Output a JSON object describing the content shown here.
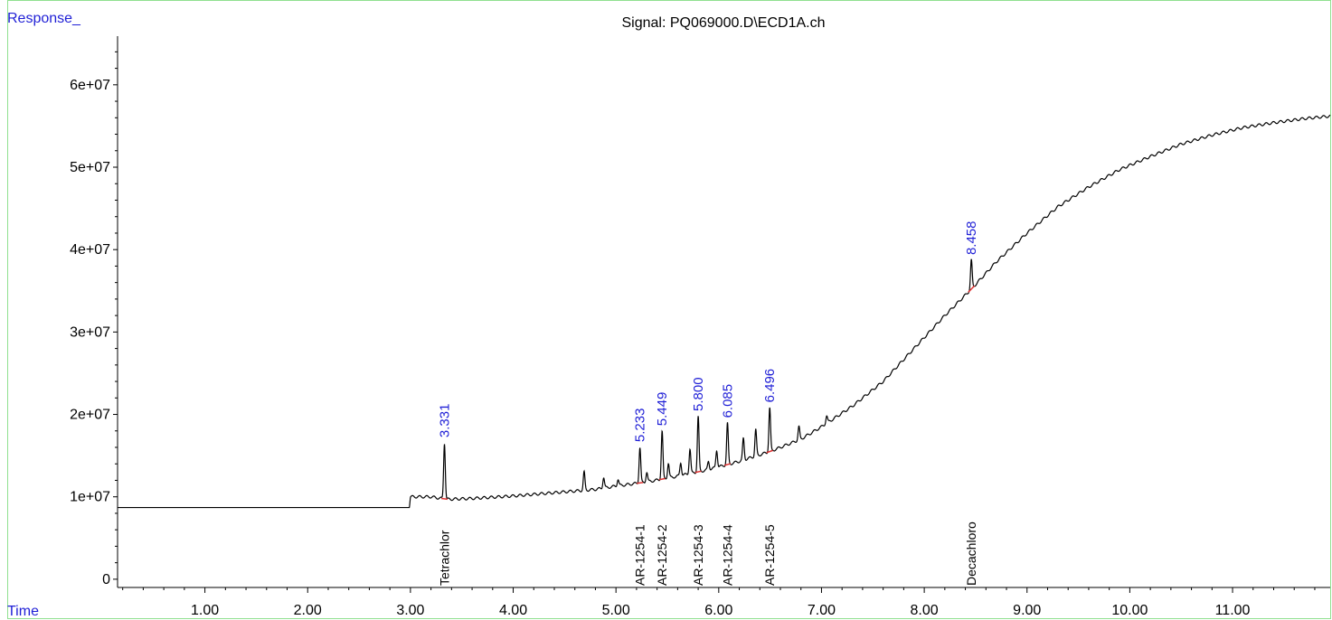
{
  "chart_data": {
    "type": "line",
    "title": "Signal: PQ069000.D\\ECD1A.ch",
    "ylabel": "Response_",
    "xlabel": "Time",
    "xlim": [
      0.15,
      11.95
    ],
    "ylim": [
      -1000000,
      67000000
    ],
    "x_ticks": [
      "1.00",
      "2.00",
      "3.00",
      "4.00",
      "5.00",
      "6.00",
      "7.00",
      "8.00",
      "9.00",
      "10.00",
      "11.00"
    ],
    "x_tick_values": [
      1,
      2,
      3,
      4,
      5,
      6,
      7,
      8,
      9,
      10,
      11
    ],
    "y_ticks": [
      "0",
      "1e+07",
      "2e+07",
      "3e+07",
      "4e+07",
      "5e+07",
      "6e+07"
    ],
    "y_tick_values": [
      0,
      10000000,
      20000000,
      30000000,
      40000000,
      50000000,
      60000000
    ],
    "baseline": [
      [
        0.15,
        8700000
      ],
      [
        2.99,
        8700000
      ],
      [
        3.0,
        10000000
      ],
      [
        3.2,
        10000000
      ],
      [
        3.35,
        9700000
      ],
      [
        3.6,
        9800000
      ],
      [
        4.0,
        10100000
      ],
      [
        4.4,
        10500000
      ],
      [
        4.8,
        10900000
      ],
      [
        5.0,
        11300000
      ],
      [
        5.3,
        11800000
      ],
      [
        5.6,
        12500000
      ],
      [
        5.9,
        13300000
      ],
      [
        6.2,
        14300000
      ],
      [
        6.5,
        15500000
      ],
      [
        6.8,
        17000000
      ],
      [
        7.0,
        18500000
      ],
      [
        7.3,
        21000000
      ],
      [
        7.6,
        24000000
      ],
      [
        7.9,
        28000000
      ],
      [
        8.2,
        32000000
      ],
      [
        8.458,
        35200000
      ],
      [
        8.7,
        38500000
      ],
      [
        9.0,
        42000000
      ],
      [
        9.3,
        45200000
      ],
      [
        9.6,
        47600000
      ],
      [
        9.9,
        49700000
      ],
      [
        10.2,
        51300000
      ],
      [
        10.5,
        52800000
      ],
      [
        10.8,
        53900000
      ],
      [
        11.1,
        54800000
      ],
      [
        11.4,
        55400000
      ],
      [
        11.7,
        55900000
      ],
      [
        11.95,
        56200000
      ]
    ],
    "peaks": [
      {
        "x": 3.331,
        "height": 6800000,
        "label": "3.331"
      },
      {
        "x": 4.69,
        "height": 2200000
      },
      {
        "x": 4.88,
        "height": 1300000
      },
      {
        "x": 5.02,
        "height": 800000
      },
      {
        "x": 5.233,
        "height": 4300000,
        "label": "5.233"
      },
      {
        "x": 5.3,
        "height": 1200000
      },
      {
        "x": 5.449,
        "height": 5800000,
        "label": "5.449"
      },
      {
        "x": 5.51,
        "height": 1800000
      },
      {
        "x": 5.63,
        "height": 1600000
      },
      {
        "x": 5.72,
        "height": 3000000
      },
      {
        "x": 5.8,
        "height": 6700000,
        "label": "5.800"
      },
      {
        "x": 5.9,
        "height": 1000000
      },
      {
        "x": 5.98,
        "height": 2100000
      },
      {
        "x": 6.085,
        "height": 5000000,
        "label": "6.085"
      },
      {
        "x": 6.24,
        "height": 2600000
      },
      {
        "x": 6.36,
        "height": 3200000
      },
      {
        "x": 6.496,
        "height": 5300000,
        "label": "6.496"
      },
      {
        "x": 6.78,
        "height": 1600000
      },
      {
        "x": 7.05,
        "height": 900000
      },
      {
        "x": 8.458,
        "height": 3500000,
        "label": "8.458"
      }
    ],
    "compounds": [
      {
        "x": 3.331,
        "name": "Tetrachlor"
      },
      {
        "x": 5.233,
        "name": "AR-1254-1"
      },
      {
        "x": 5.449,
        "name": "AR-1254-2"
      },
      {
        "x": 5.8,
        "name": "AR-1254-3"
      },
      {
        "x": 6.085,
        "name": "AR-1254-4"
      },
      {
        "x": 6.496,
        "name": "AR-1254-5"
      },
      {
        "x": 8.458,
        "name": "Decachloro"
      }
    ],
    "grid": false,
    "colors": {
      "trace": "#000000",
      "retention_label": "#1f1fd6",
      "integration": "#e03030",
      "axis": "#000000"
    }
  }
}
